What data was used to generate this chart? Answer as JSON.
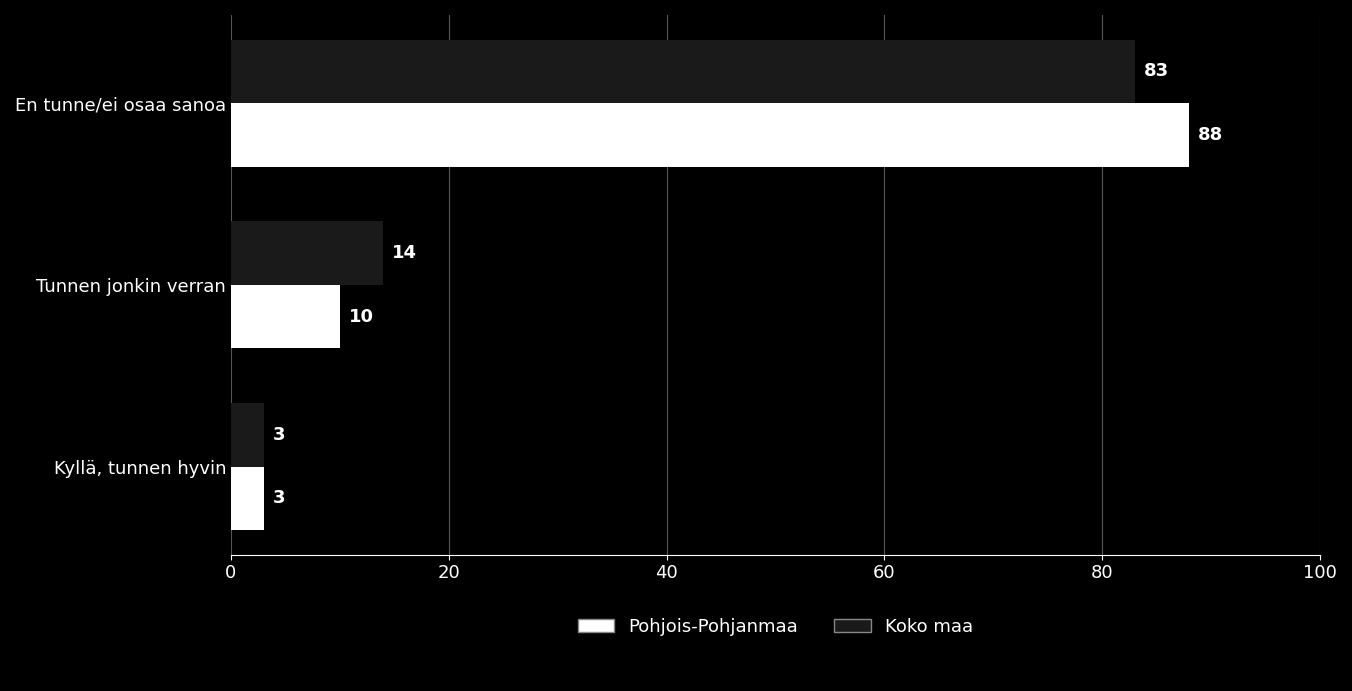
{
  "categories": [
    "En tunne/ei osaa sanoa",
    "Tunnen jonkin verran",
    "Kyllä, tunnen hyvin"
  ],
  "pohjois_pohjanmaa": [
    88,
    10,
    3
  ],
  "koko_maa": [
    83,
    14,
    3
  ],
  "bar_color_pp": "#ffffff",
  "bar_color_km": "#1a1a1a",
  "background_color": "#000000",
  "text_color": "#ffffff",
  "xlim": [
    0,
    100
  ],
  "xticks": [
    0,
    20,
    40,
    60,
    80,
    100
  ],
  "legend_pp": "Pohjois-Pohjanmaa",
  "legend_km": "Koko maa",
  "bar_height": 0.35,
  "value_label_fontsize": 13,
  "axis_label_fontsize": 13,
  "legend_fontsize": 13
}
